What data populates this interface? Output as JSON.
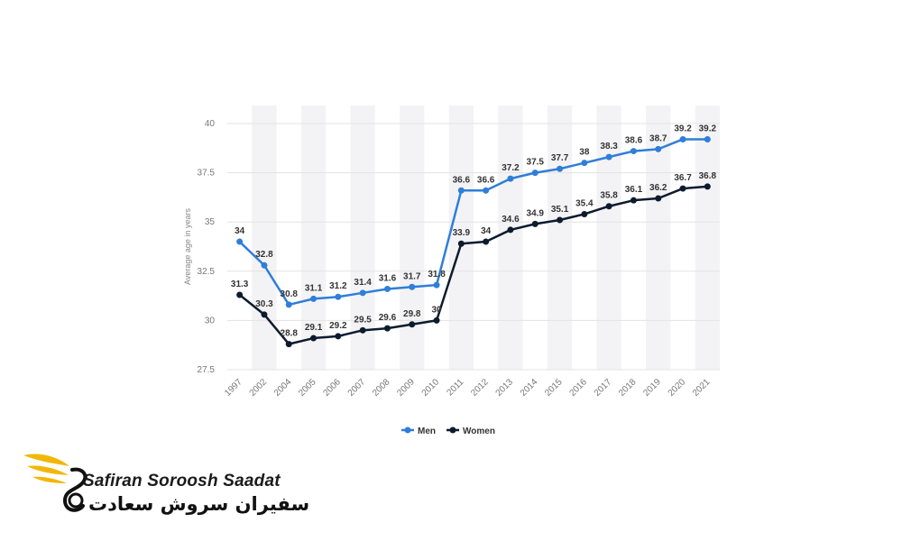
{
  "chart_data": {
    "type": "line",
    "categories": [
      "1997",
      "2002",
      "2004",
      "2005",
      "2006",
      "2007",
      "2008",
      "2009",
      "2010",
      "2011",
      "2012",
      "2013",
      "2014",
      "2015",
      "2016",
      "2017",
      "2018",
      "2019",
      "2020",
      "2021"
    ],
    "series": [
      {
        "name": "Men",
        "color": "#2f7ed8",
        "values": [
          34,
          32.8,
          30.8,
          31.1,
          31.2,
          31.4,
          31.6,
          31.7,
          31.8,
          36.6,
          36.6,
          37.2,
          37.5,
          37.7,
          38,
          38.3,
          38.6,
          38.7,
          39.2,
          39.2
        ],
        "labels": [
          "34",
          "32.8",
          "30.8",
          "31.1",
          "31.2",
          "31.4",
          "31.6",
          "31.7",
          "31.8",
          "36.6",
          "36.6",
          "37.2",
          "37.5",
          "37.7",
          "38",
          "38.3",
          "38.6",
          "38.7",
          "39.2",
          "39.2"
        ]
      },
      {
        "name": "Women",
        "color": "#0d1b2e",
        "values": [
          31.3,
          30.3,
          28.8,
          29.1,
          29.2,
          29.5,
          29.6,
          29.8,
          30,
          33.9,
          34,
          34.6,
          34.9,
          35.1,
          35.4,
          35.8,
          36.1,
          36.2,
          36.7,
          36.8
        ],
        "labels": [
          "31.3",
          "30.3",
          "28.8",
          "29.1",
          "29.2",
          "29.5",
          "29.6",
          "29.8",
          "30",
          "33.9",
          "34",
          "34.6",
          "34.9",
          "35.1",
          "35.4",
          "35.8",
          "36.1",
          "36.2",
          "36.7",
          "36.8"
        ]
      }
    ],
    "yticks": [
      "27.5",
      "30",
      "32.5",
      "35",
      "37.5",
      "40"
    ],
    "ytick_values": [
      27.5,
      30,
      32.5,
      35,
      37.5,
      40
    ],
    "ylim": [
      27.5,
      40
    ],
    "ylabel": "Average age in years",
    "xlabel": "",
    "title": "",
    "legend_position": "bottom-center",
    "grid": true
  },
  "logo": {
    "name_en": "Safiran Soroosh Saadat",
    "name_fa": "سفیران سروش سعادت",
    "accent_color": "#f2b705"
  }
}
